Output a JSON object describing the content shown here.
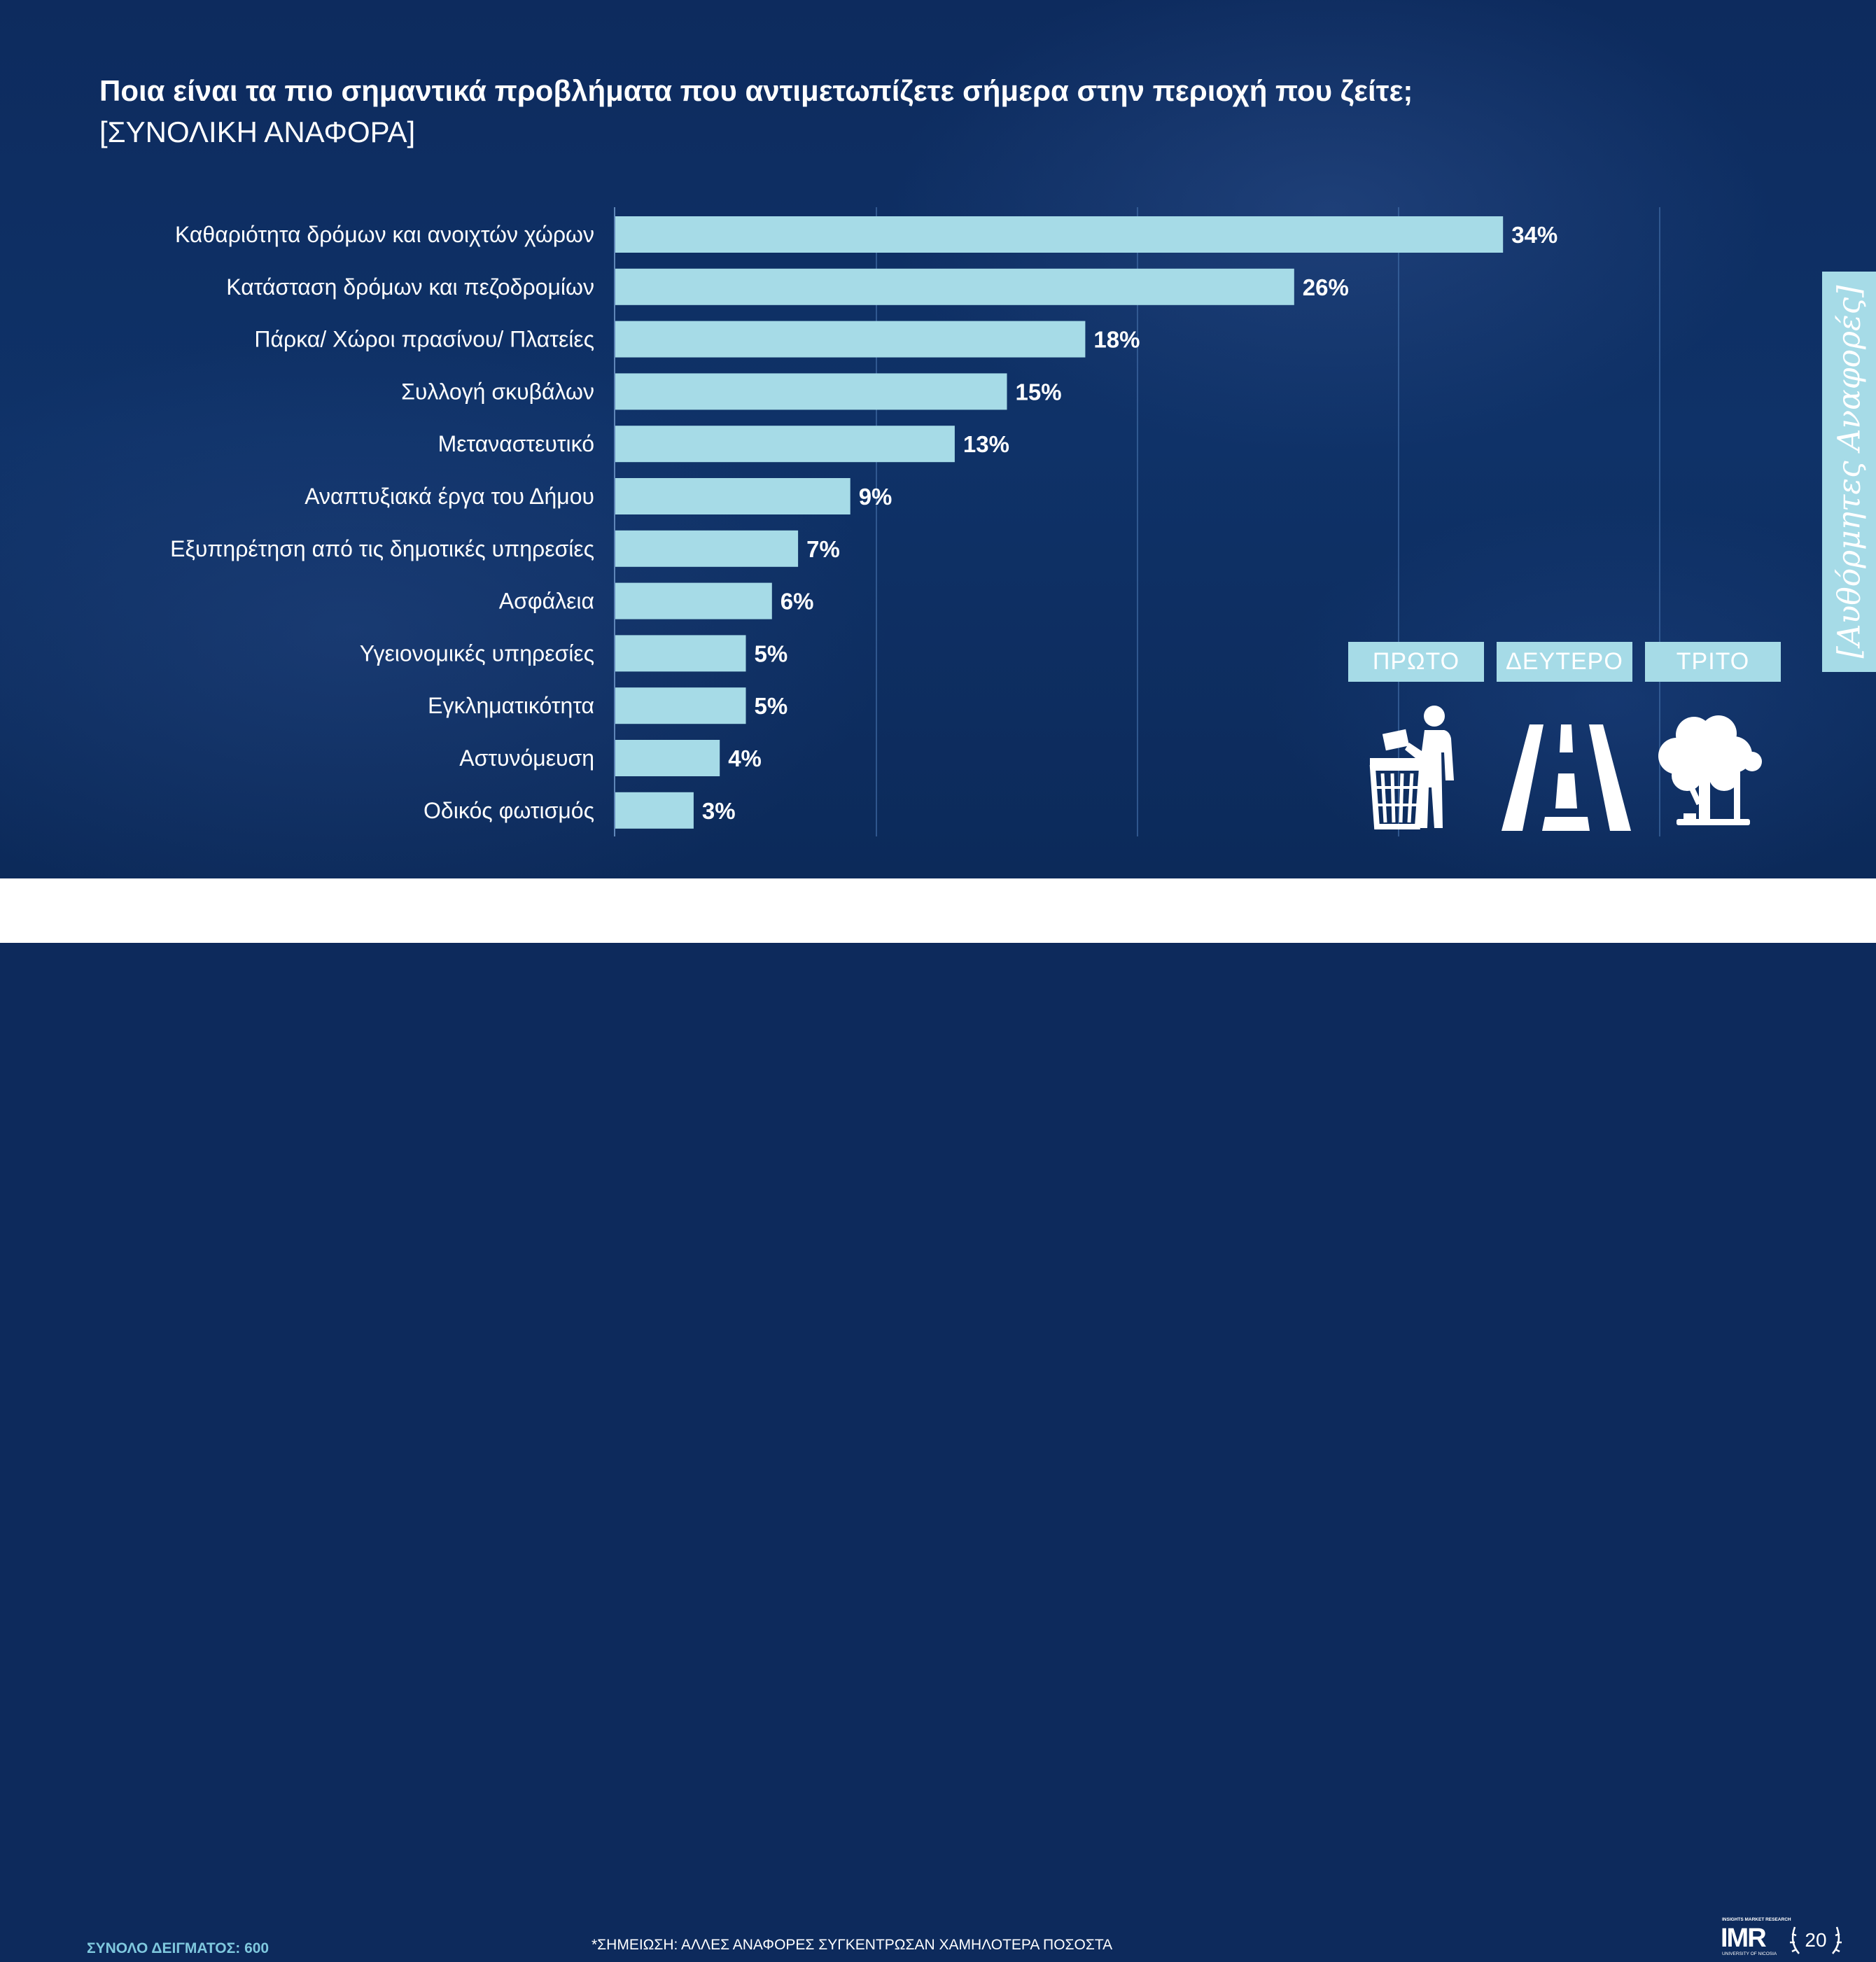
{
  "title": {
    "main": "Ποια είναι τα πιο σημαντικά προβλήματα που αντιμετωπίζετε σήμερα στην περιοχή που ζείτε;",
    "sub": "[ΣΥΝΟΛΙΚΗ ΑΝΑΦΟΡΑ]"
  },
  "chart_data": {
    "type": "bar",
    "orientation": "horizontal",
    "categories": [
      "Καθαριότητα δρόμων και ανοιχτών χώρων",
      "Κατάσταση δρόμων και πεζοδρομίων",
      "Πάρκα/ Χώροι πρασίνου/ Πλατείες",
      "Συλλογή σκυβάλων",
      "Μεταναστευτικό",
      "Αναπτυξιακά έργα του Δήμου",
      "Εξυπηρέτηση από τις δημοτικές υπηρεσίες",
      "Ασφάλεια",
      "Υγειονομικές υπηρεσίες",
      "Εγκληματικότητα",
      "Αστυνόμευση",
      "Οδικός φωτισμός"
    ],
    "values": [
      34,
      26,
      18,
      15,
      13,
      9,
      7,
      6,
      5,
      5,
      4,
      3
    ],
    "value_labels": [
      "34%",
      "26%",
      "18%",
      "15%",
      "13%",
      "9%",
      "7%",
      "6%",
      "5%",
      "5%",
      "4%",
      "3%"
    ],
    "xlim": [
      0,
      40
    ],
    "grid": true,
    "bar_color": "#a6dbe7"
  },
  "side_tab": {
    "label": "[Αυθόρμητες Αναφορές]"
  },
  "ranking": [
    {
      "label": "ΠΡΩΤΟ",
      "icon": "trash-disposal-icon"
    },
    {
      "label": "ΔΕΥΤΕΡΟ",
      "icon": "road-icon"
    },
    {
      "label": "ΤΡΙΤΟ",
      "icon": "tree-icon"
    }
  ],
  "footer": {
    "sample_size": "ΣΥΝΟΛΟ ΔΕΙΓΜΑΤΟΣ: 600",
    "note": "*ΣΗΜΕΙΩΣΗ: ΑΛΛΕΣ ΑΝΑΦΟΡΕΣ ΣΥΓΚΕΝΤΡΩΣΑΝ ΧΑΜΗΛΟΤΕΡΑ ΠΟΣΟΣΤΑ"
  },
  "logo": {
    "tagline": "INSIGHTS MARKET RESEARCH",
    "name": "IMR",
    "university": "UNIVERSITY OF NICOSIA",
    "anniversary": "20"
  }
}
